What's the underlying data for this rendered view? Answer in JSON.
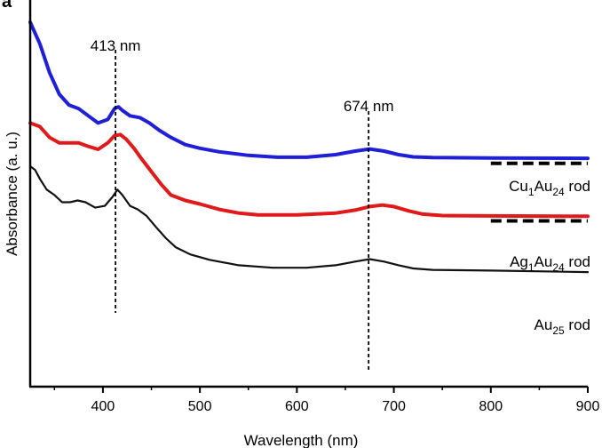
{
  "chart_data": {
    "type": "line",
    "panel_label": "a",
    "xlabel": "Wavelength (nm)",
    "ylabel": "Absorbance (a. u.)",
    "xlim": [
      325,
      900
    ],
    "x_ticks": [
      400,
      500,
      600,
      700,
      800,
      900
    ],
    "y_ticks_shown": false,
    "grid": false,
    "annotations": [
      {
        "text": "413 nm",
        "x": 413
      },
      {
        "text": "674 nm",
        "x": 674
      }
    ],
    "series": [
      {
        "label_main": "Cu",
        "label_sub1": "1",
        "label_mid": "Au",
        "label_sub2": "24",
        "label_tail": " rod",
        "color": "#1f1fd6",
        "points": [
          [
            325,
            1.0
          ],
          [
            335,
            0.94
          ],
          [
            345,
            0.86
          ],
          [
            355,
            0.8
          ],
          [
            365,
            0.77
          ],
          [
            375,
            0.76
          ],
          [
            385,
            0.74
          ],
          [
            395,
            0.72
          ],
          [
            405,
            0.73
          ],
          [
            412,
            0.76
          ],
          [
            416,
            0.765
          ],
          [
            420,
            0.755
          ],
          [
            428,
            0.74
          ],
          [
            438,
            0.735
          ],
          [
            448,
            0.72
          ],
          [
            458,
            0.7
          ],
          [
            470,
            0.68
          ],
          [
            485,
            0.66
          ],
          [
            500,
            0.65
          ],
          [
            520,
            0.64
          ],
          [
            550,
            0.63
          ],
          [
            580,
            0.625
          ],
          [
            610,
            0.625
          ],
          [
            640,
            0.632
          ],
          [
            660,
            0.642
          ],
          [
            675,
            0.648
          ],
          [
            690,
            0.642
          ],
          [
            705,
            0.632
          ],
          [
            720,
            0.626
          ],
          [
            740,
            0.624
          ],
          [
            800,
            0.623
          ],
          [
            900,
            0.622
          ]
        ]
      },
      {
        "label_main": "Ag",
        "label_sub1": "1",
        "label_mid": "Au",
        "label_sub2": "24",
        "label_tail": " rod",
        "color": "#e01a1a",
        "points": [
          [
            325,
            0.72
          ],
          [
            335,
            0.71
          ],
          [
            345,
            0.68
          ],
          [
            355,
            0.665
          ],
          [
            365,
            0.665
          ],
          [
            375,
            0.665
          ],
          [
            385,
            0.655
          ],
          [
            395,
            0.647
          ],
          [
            405,
            0.665
          ],
          [
            412,
            0.685
          ],
          [
            418,
            0.688
          ],
          [
            424,
            0.675
          ],
          [
            432,
            0.65
          ],
          [
            440,
            0.62
          ],
          [
            450,
            0.585
          ],
          [
            460,
            0.55
          ],
          [
            470,
            0.52
          ],
          [
            485,
            0.505
          ],
          [
            500,
            0.495
          ],
          [
            520,
            0.48
          ],
          [
            540,
            0.47
          ],
          [
            560,
            0.465
          ],
          [
            600,
            0.465
          ],
          [
            640,
            0.47
          ],
          [
            660,
            0.478
          ],
          [
            675,
            0.488
          ],
          [
            688,
            0.492
          ],
          [
            700,
            0.488
          ],
          [
            715,
            0.476
          ],
          [
            730,
            0.467
          ],
          [
            750,
            0.463
          ],
          [
            800,
            0.462
          ],
          [
            900,
            0.461
          ]
        ]
      },
      {
        "label_main": "Au",
        "label_sub1": "25",
        "label_mid": "",
        "label_sub2": "",
        "label_tail": " rod",
        "color": "#111111",
        "points": [
          [
            325,
            0.6
          ],
          [
            330,
            0.59
          ],
          [
            335,
            0.565
          ],
          [
            342,
            0.535
          ],
          [
            350,
            0.52
          ],
          [
            358,
            0.5
          ],
          [
            366,
            0.5
          ],
          [
            374,
            0.505
          ],
          [
            382,
            0.5
          ],
          [
            392,
            0.485
          ],
          [
            402,
            0.49
          ],
          [
            410,
            0.515
          ],
          [
            415,
            0.535
          ],
          [
            420,
            0.52
          ],
          [
            428,
            0.49
          ],
          [
            436,
            0.48
          ],
          [
            445,
            0.462
          ],
          [
            455,
            0.43
          ],
          [
            465,
            0.4
          ],
          [
            475,
            0.375
          ],
          [
            490,
            0.355
          ],
          [
            510,
            0.34
          ],
          [
            540,
            0.325
          ],
          [
            575,
            0.318
          ],
          [
            610,
            0.318
          ],
          [
            640,
            0.325
          ],
          [
            660,
            0.335
          ],
          [
            675,
            0.342
          ],
          [
            690,
            0.335
          ],
          [
            705,
            0.325
          ],
          [
            720,
            0.316
          ],
          [
            740,
            0.312
          ],
          [
            800,
            0.31
          ],
          [
            900,
            0.306
          ]
        ]
      }
    ],
    "dashed_segments": [
      {
        "x_start": 800,
        "x_end": 900,
        "y": 0.618
      },
      {
        "x_start": 800,
        "x_end": 900,
        "y": 0.458
      }
    ]
  }
}
